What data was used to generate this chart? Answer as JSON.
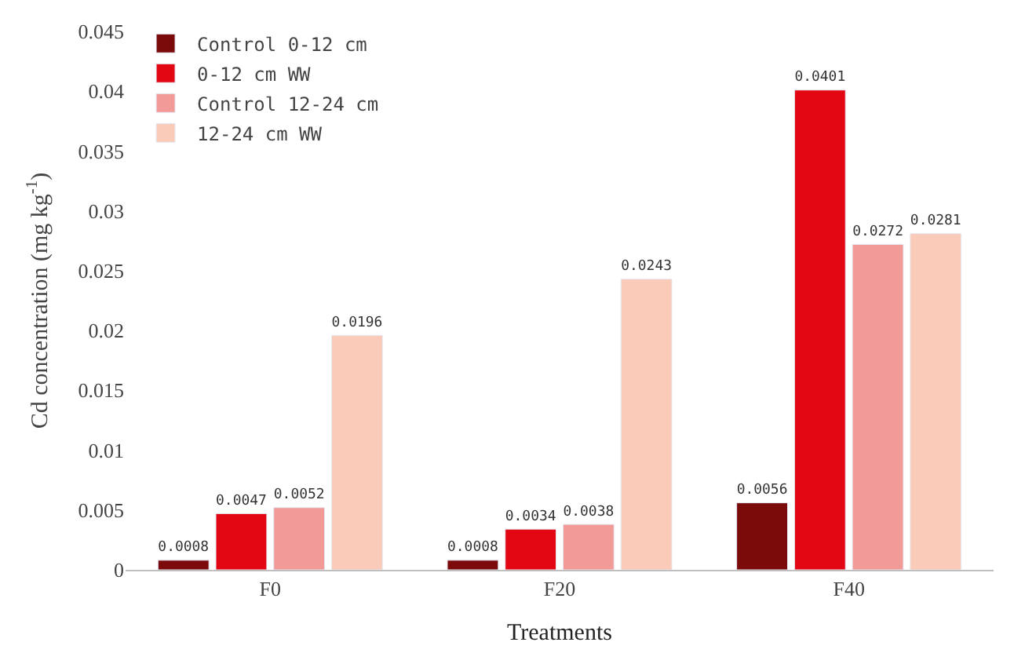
{
  "chart_data": {
    "type": "bar",
    "xlabel": "Treatments",
    "ylabel": "Cd concentration (mg kg$^{-1}$)",
    "categories": [
      "F0",
      "F20",
      "F40"
    ],
    "series": [
      {
        "name": "Control 0-12 cm",
        "color": "#7b0a0a",
        "values": [
          0.0008,
          0.0008,
          0.0056
        ]
      },
      {
        "name": "0-12 cm WW",
        "color": "#e30613",
        "values": [
          0.0047,
          0.0034,
          0.0401
        ]
      },
      {
        "name": "Control 12-24 cm",
        "color": "#f29a98",
        "values": [
          0.0052,
          0.0038,
          0.0272
        ]
      },
      {
        "name": "12-24 cm WW",
        "color": "#f9cbb8",
        "values": [
          0.0196,
          0.0243,
          0.0281
        ]
      }
    ],
    "ylim": [
      0,
      0.045
    ],
    "yticks": [
      0,
      0.005,
      0.01,
      0.015,
      0.02,
      0.025,
      0.03,
      0.035,
      0.04,
      0.045
    ],
    "data_labels": true,
    "legend": "top left"
  }
}
